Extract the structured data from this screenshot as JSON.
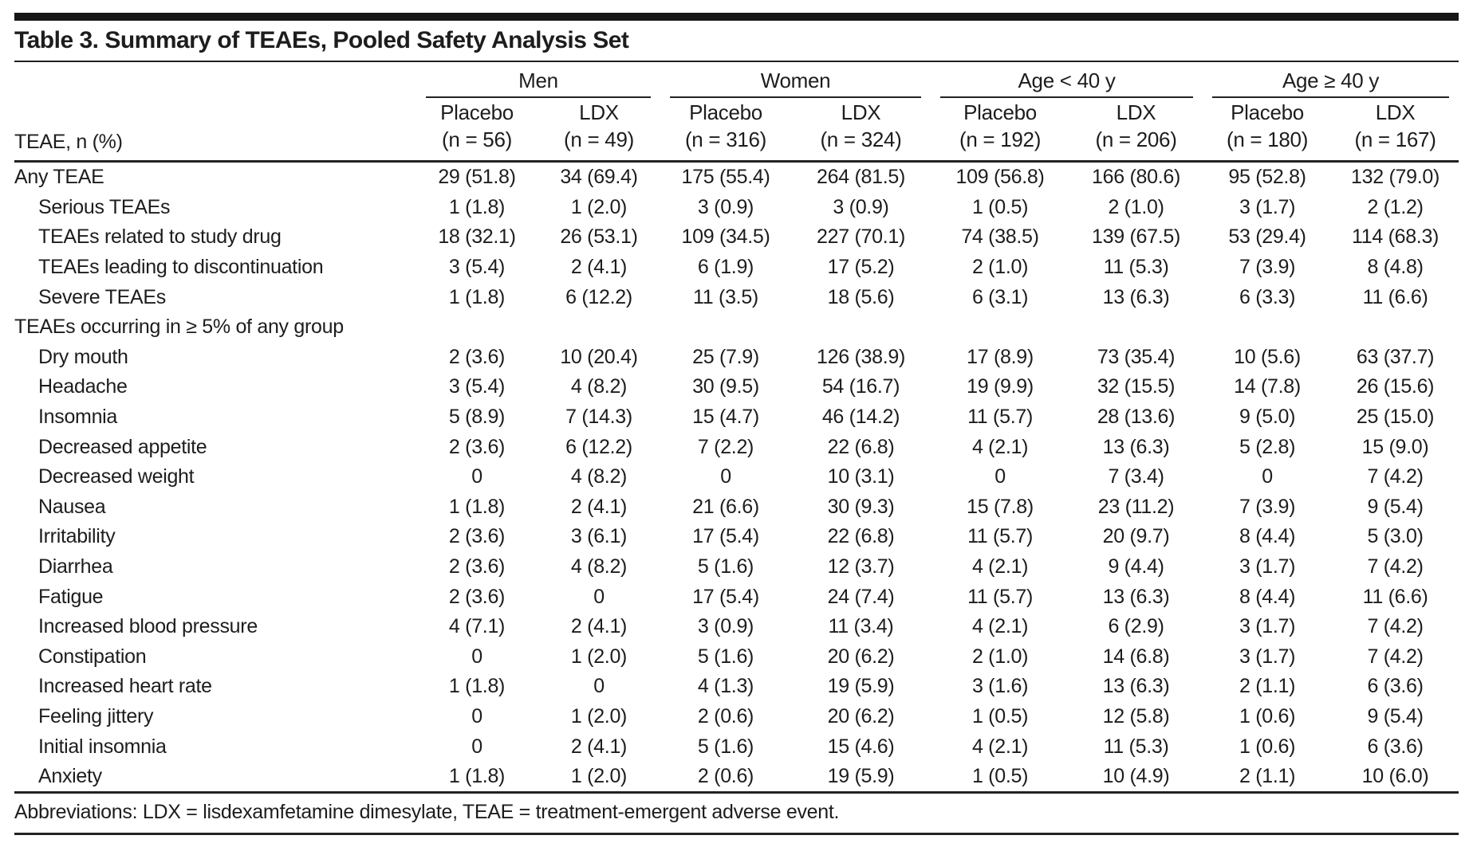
{
  "table": {
    "title": "Table 3. Summary of TEAEs, Pooled Safety Analysis Set",
    "row_header_label": "TEAE, n (%)",
    "groups": [
      {
        "label": "Men",
        "cols": [
          {
            "arm": "Placebo",
            "n": "(n = 56)"
          },
          {
            "arm": "LDX",
            "n": "(n = 49)"
          }
        ]
      },
      {
        "label": "Women",
        "cols": [
          {
            "arm": "Placebo",
            "n": "(n = 316)"
          },
          {
            "arm": "LDX",
            "n": "(n = 324)"
          }
        ]
      },
      {
        "label": "Age < 40 y",
        "cols": [
          {
            "arm": "Placebo",
            "n": "(n = 192)"
          },
          {
            "arm": "LDX",
            "n": "(n = 206)"
          }
        ]
      },
      {
        "label": "Age ≥ 40 y",
        "cols": [
          {
            "arm": "Placebo",
            "n": "(n = 180)"
          },
          {
            "arm": "LDX",
            "n": "(n = 167)"
          }
        ]
      }
    ],
    "rows": [
      {
        "label": "Any TEAE",
        "type": "top",
        "values": [
          "29 (51.8)",
          "34 (69.4)",
          "175 (55.4)",
          "264 (81.5)",
          "109 (56.8)",
          "166 (80.6)",
          "95 (52.8)",
          "132 (79.0)"
        ]
      },
      {
        "label": "Serious TEAEs",
        "type": "sub",
        "values": [
          "1 (1.8)",
          "1 (2.0)",
          "3 (0.9)",
          "3 (0.9)",
          "1 (0.5)",
          "2 (1.0)",
          "3 (1.7)",
          "2 (1.2)"
        ]
      },
      {
        "label": "TEAEs related to study drug",
        "type": "sub",
        "values": [
          "18 (32.1)",
          "26 (53.1)",
          "109 (34.5)",
          "227 (70.1)",
          "74 (38.5)",
          "139 (67.5)",
          "53 (29.4)",
          "114 (68.3)"
        ]
      },
      {
        "label": "TEAEs leading to discontinuation",
        "type": "sub",
        "values": [
          "3 (5.4)",
          "2 (4.1)",
          "6 (1.9)",
          "17 (5.2)",
          "2 (1.0)",
          "11 (5.3)",
          "7 (3.9)",
          "8 (4.8)"
        ]
      },
      {
        "label": "Severe TEAEs",
        "type": "sub",
        "values": [
          "1 (1.8)",
          "6 (12.2)",
          "11 (3.5)",
          "18 (5.6)",
          "6 (3.1)",
          "13 (6.3)",
          "6 (3.3)",
          "11 (6.6)"
        ]
      },
      {
        "label": "TEAEs occurring in ≥ 5% of any group",
        "type": "section",
        "values": [
          "",
          "",
          "",
          "",
          "",
          "",
          "",
          ""
        ]
      },
      {
        "label": "Dry mouth",
        "type": "sub",
        "values": [
          "2 (3.6)",
          "10 (20.4)",
          "25 (7.9)",
          "126 (38.9)",
          "17 (8.9)",
          "73 (35.4)",
          "10 (5.6)",
          "63 (37.7)"
        ]
      },
      {
        "label": "Headache",
        "type": "sub",
        "values": [
          "3 (5.4)",
          "4 (8.2)",
          "30 (9.5)",
          "54 (16.7)",
          "19 (9.9)",
          "32 (15.5)",
          "14 (7.8)",
          "26 (15.6)"
        ]
      },
      {
        "label": "Insomnia",
        "type": "sub",
        "values": [
          "5 (8.9)",
          "7 (14.3)",
          "15 (4.7)",
          "46 (14.2)",
          "11 (5.7)",
          "28 (13.6)",
          "9 (5.0)",
          "25 (15.0)"
        ]
      },
      {
        "label": "Decreased appetite",
        "type": "sub",
        "values": [
          "2 (3.6)",
          "6 (12.2)",
          "7 (2.2)",
          "22 (6.8)",
          "4 (2.1)",
          "13 (6.3)",
          "5 (2.8)",
          "15 (9.0)"
        ]
      },
      {
        "label": "Decreased weight",
        "type": "sub",
        "values": [
          "0",
          "4 (8.2)",
          "0",
          "10 (3.1)",
          "0",
          "7 (3.4)",
          "0",
          "7 (4.2)"
        ]
      },
      {
        "label": "Nausea",
        "type": "sub",
        "values": [
          "1 (1.8)",
          "2 (4.1)",
          "21 (6.6)",
          "30 (9.3)",
          "15 (7.8)",
          "23 (11.2)",
          "7 (3.9)",
          "9 (5.4)"
        ]
      },
      {
        "label": "Irritability",
        "type": "sub",
        "values": [
          "2 (3.6)",
          "3 (6.1)",
          "17 (5.4)",
          "22 (6.8)",
          "11 (5.7)",
          "20 (9.7)",
          "8 (4.4)",
          "5 (3.0)"
        ]
      },
      {
        "label": "Diarrhea",
        "type": "sub",
        "values": [
          "2 (3.6)",
          "4 (8.2)",
          "5 (1.6)",
          "12 (3.7)",
          "4 (2.1)",
          "9 (4.4)",
          "3 (1.7)",
          "7 (4.2)"
        ]
      },
      {
        "label": "Fatigue",
        "type": "sub",
        "values": [
          "2 (3.6)",
          "0",
          "17 (5.4)",
          "24 (7.4)",
          "11 (5.7)",
          "13 (6.3)",
          "8 (4.4)",
          "11 (6.6)"
        ]
      },
      {
        "label": "Increased blood pressure",
        "type": "sub",
        "values": [
          "4 (7.1)",
          "2 (4.1)",
          "3 (0.9)",
          "11 (3.4)",
          "4 (2.1)",
          "6 (2.9)",
          "3 (1.7)",
          "7 (4.2)"
        ]
      },
      {
        "label": "Constipation",
        "type": "sub",
        "values": [
          "0",
          "1 (2.0)",
          "5 (1.6)",
          "20 (6.2)",
          "2 (1.0)",
          "14 (6.8)",
          "3 (1.7)",
          "7 (4.2)"
        ]
      },
      {
        "label": "Increased heart rate",
        "type": "sub",
        "values": [
          "1 (1.8)",
          "0",
          "4 (1.3)",
          "19 (5.9)",
          "3 (1.6)",
          "13 (6.3)",
          "2 (1.1)",
          "6 (3.6)"
        ]
      },
      {
        "label": "Feeling jittery",
        "type": "sub",
        "values": [
          "0",
          "1 (2.0)",
          "2 (0.6)",
          "20 (6.2)",
          "1 (0.5)",
          "12 (5.8)",
          "1 (0.6)",
          "9 (5.4)"
        ]
      },
      {
        "label": "Initial insomnia",
        "type": "sub",
        "values": [
          "0",
          "2 (4.1)",
          "5 (1.6)",
          "15 (4.6)",
          "4 (2.1)",
          "11 (5.3)",
          "1 (0.6)",
          "6 (3.6)"
        ]
      },
      {
        "label": "Anxiety",
        "type": "sub",
        "values": [
          "1 (1.8)",
          "1 (2.0)",
          "2 (0.6)",
          "19 (5.9)",
          "1 (0.5)",
          "10 (4.9)",
          "2 (1.1)",
          "10 (6.0)"
        ]
      }
    ],
    "footnote": "Abbreviations: LDX = lisdexamfetamine dimesylate, TEAE = treatment-emergent adverse event.",
    "colors": {
      "text": "#1d1d1d",
      "rule": "#222222",
      "top_bar": "#161616",
      "background": "#ffffff"
    }
  }
}
